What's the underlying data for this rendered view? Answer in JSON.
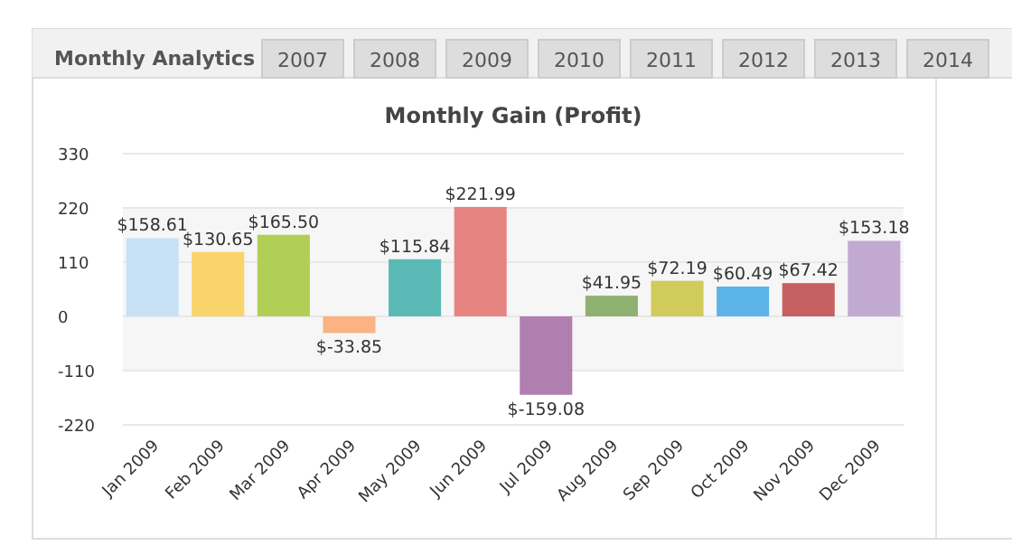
{
  "chart_data": {
    "type": "bar",
    "title": "Monthly Gain (Profit)",
    "annotations": [
      "Monthly Analytics",
      "2007",
      "2008",
      "2009",
      "2010",
      "2011",
      "2012",
      "2013",
      "2014"
    ],
    "categories": [
      "Jan 2009",
      "Feb 2009",
      "Mar 2009",
      "Apr 2009",
      "May 2009",
      "Jun 2009",
      "Jul 2009",
      "Aug 2009",
      "Sep 2009",
      "Oct 2009",
      "Nov 2009",
      "Dec 2009"
    ],
    "values": [
      158.61,
      130.65,
      165.5,
      -33.85,
      115.84,
      221.99,
      -159.08,
      41.95,
      72.19,
      60.49,
      67.42,
      153.18
    ],
    "colors": [
      "#c7e2f7",
      "#f9d46a",
      "#b2cf55",
      "#fbb384",
      "#5bbab5",
      "#e58481",
      "#b07fb0",
      "#8fb171",
      "#d0cb5b",
      "#5db4e8",
      "#c76060",
      "#c1a9d2"
    ],
    "value_labels": [
      "$158.61",
      "$130.65",
      "$165.50",
      "$-33.85",
      "$115.84",
      "$221.99",
      "$-159.08",
      "$41.95",
      "$72.19",
      "$60.49",
      "$67.42",
      "$153.18"
    ],
    "ylim": [
      -220,
      330
    ],
    "yticks": [
      -220,
      -110,
      0,
      110,
      220,
      330
    ],
    "grid": "y"
  }
}
